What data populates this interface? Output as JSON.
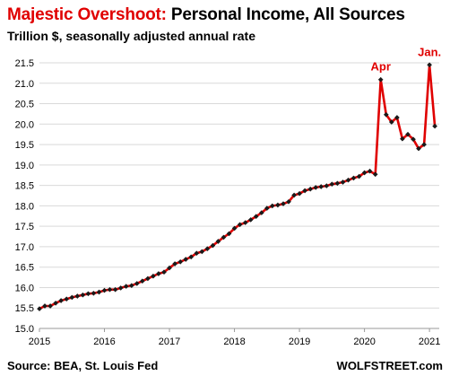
{
  "title_highlight": "Majestic Overshoot:",
  "title_rest": "Personal Income, All Sources",
  "subtitle": "Trillion $, seasonally adjusted annual rate",
  "source": "Source: BEA, St. Louis Fed",
  "brand": "WOLFSTREET.com",
  "colors": {
    "title_highlight": "#e00000",
    "line": "#e00000",
    "marker": "#1a1a1a",
    "grid": "#d9d9d9",
    "annotation": "#e00000"
  },
  "chart_data": {
    "type": "line",
    "title": "Majestic Overshoot: Personal Income, All Sources",
    "subtitle": "Trillion $, seasonally adjusted annual rate",
    "xlabel": "",
    "ylabel": "",
    "xlim": [
      2015,
      2021.15
    ],
    "ylim": [
      15.0,
      21.5
    ],
    "yticks": [
      "15.0",
      "15.5",
      "16.0",
      "16.5",
      "17.0",
      "17.5",
      "18.0",
      "18.5",
      "19.0",
      "19.5",
      "20.0",
      "20.5",
      "21.0",
      "21.5"
    ],
    "xticks": [
      "2015",
      "2016",
      "2017",
      "2018",
      "2019",
      "2020",
      "2021"
    ],
    "grid": "horizontal",
    "legend": "none",
    "series": [
      {
        "name": "",
        "x": [
          2015.0,
          2015.083,
          2015.167,
          2015.25,
          2015.333,
          2015.417,
          2015.5,
          2015.583,
          2015.667,
          2015.75,
          2015.833,
          2015.917,
          2016.0,
          2016.083,
          2016.167,
          2016.25,
          2016.333,
          2016.417,
          2016.5,
          2016.583,
          2016.667,
          2016.75,
          2016.833,
          2016.917,
          2017.0,
          2017.083,
          2017.167,
          2017.25,
          2017.333,
          2017.417,
          2017.5,
          2017.583,
          2017.667,
          2017.75,
          2017.833,
          2017.917,
          2018.0,
          2018.083,
          2018.167,
          2018.25,
          2018.333,
          2018.417,
          2018.5,
          2018.583,
          2018.667,
          2018.75,
          2018.833,
          2018.917,
          2019.0,
          2019.083,
          2019.167,
          2019.25,
          2019.333,
          2019.417,
          2019.5,
          2019.583,
          2019.667,
          2019.75,
          2019.833,
          2019.917,
          2020.0,
          2020.083,
          2020.167,
          2020.25,
          2020.333,
          2020.417,
          2020.5,
          2020.583,
          2020.667,
          2020.75,
          2020.833,
          2020.917,
          2021.0,
          2021.083
        ],
        "values": [
          15.48,
          15.55,
          15.55,
          15.62,
          15.68,
          15.72,
          15.76,
          15.79,
          15.82,
          15.85,
          15.86,
          15.89,
          15.93,
          15.95,
          15.95,
          15.99,
          16.03,
          16.05,
          16.1,
          16.16,
          16.22,
          16.28,
          16.34,
          16.38,
          16.48,
          16.58,
          16.63,
          16.69,
          16.75,
          16.84,
          16.88,
          16.95,
          17.03,
          17.13,
          17.23,
          17.32,
          17.45,
          17.54,
          17.59,
          17.66,
          17.74,
          17.83,
          17.94,
          18.0,
          18.02,
          18.05,
          18.1,
          18.26,
          18.3,
          18.37,
          18.41,
          18.45,
          18.47,
          18.49,
          18.53,
          18.55,
          18.58,
          18.63,
          18.68,
          18.72,
          18.81,
          18.85,
          18.77,
          21.09,
          20.23,
          20.05,
          20.16,
          19.64,
          19.75,
          19.63,
          19.4,
          19.5,
          21.45,
          19.95
        ]
      }
    ],
    "annotations": [
      {
        "text": "Apr",
        "x": 2020.25,
        "y": 21.09
      },
      {
        "text": "Jan.",
        "x": 2021.0,
        "y": 21.45
      }
    ]
  }
}
